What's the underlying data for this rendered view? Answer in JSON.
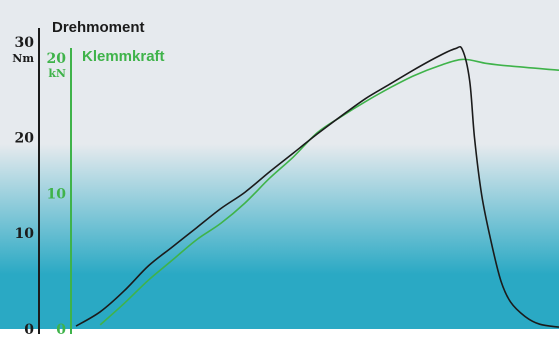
{
  "chart_data": {
    "type": "line",
    "colors": {
      "torque": "#1b1b1b",
      "clamp": "#3fb34a",
      "bg_top": "#e6eaee",
      "bg_bottom": "#2aa9c4"
    },
    "axes": [
      {
        "id": "torque",
        "title": "Drehmoment",
        "unit": "Nm",
        "ylim": [
          0,
          30
        ],
        "ticks": [
          {
            "value": 0,
            "label": "0"
          },
          {
            "value": 10,
            "label": "10"
          },
          {
            "value": 20,
            "label": "20"
          },
          {
            "value": 30,
            "label": "30"
          }
        ]
      },
      {
        "id": "clamp",
        "title": "Klemmkraft",
        "unit": "kN",
        "ylim": [
          0,
          20
        ],
        "ticks": [
          {
            "value": 0,
            "label": "0"
          },
          {
            "value": 10,
            "label": "10"
          },
          {
            "value": 20,
            "label": "20"
          }
        ]
      }
    ],
    "xlim": [
      0,
      100
    ],
    "series": [
      {
        "axis": "torque",
        "points": [
          [
            0,
            0.3
          ],
          [
            5,
            1.8
          ],
          [
            10,
            4.0
          ],
          [
            15,
            6.6
          ],
          [
            20,
            8.6
          ],
          [
            25,
            10.6
          ],
          [
            30,
            12.6
          ],
          [
            35,
            14.3
          ],
          [
            40,
            16.4
          ],
          [
            45,
            18.4
          ],
          [
            50,
            20.4
          ],
          [
            55,
            22.3
          ],
          [
            60,
            24.1
          ],
          [
            65,
            25.6
          ],
          [
            70,
            27.1
          ],
          [
            75,
            28.5
          ],
          [
            78.5,
            29.3
          ],
          [
            80,
            29.2
          ],
          [
            81.5,
            26.0
          ],
          [
            82.5,
            20.0
          ],
          [
            84,
            14.0
          ],
          [
            86,
            9.0
          ],
          [
            88,
            5.0
          ],
          [
            90,
            2.8
          ],
          [
            93,
            1.3
          ],
          [
            96,
            0.5
          ],
          [
            100,
            0.2
          ]
        ]
      },
      {
        "axis": "clamp",
        "points": [
          [
            5,
            0.3
          ],
          [
            10,
            1.9
          ],
          [
            15,
            3.6
          ],
          [
            20,
            5.1
          ],
          [
            25,
            6.6
          ],
          [
            30,
            7.8
          ],
          [
            35,
            9.3
          ],
          [
            40,
            11.1
          ],
          [
            45,
            12.7
          ],
          [
            50,
            14.5
          ],
          [
            55,
            15.7
          ],
          [
            60,
            16.8
          ],
          [
            65,
            17.8
          ],
          [
            70,
            18.7
          ],
          [
            75,
            19.4
          ],
          [
            80,
            19.9
          ],
          [
            85,
            19.6
          ],
          [
            90,
            19.4
          ],
          [
            100,
            19.1
          ]
        ]
      }
    ]
  }
}
